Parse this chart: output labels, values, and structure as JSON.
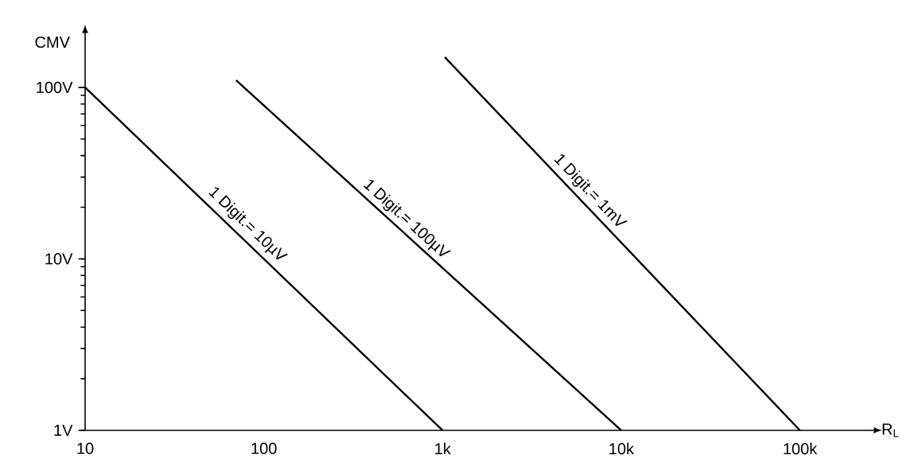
{
  "chart_data": {
    "type": "line",
    "xlabel": "R$_{L}$",
    "ylabel": "CMV",
    "log": "xy",
    "xlim": [
      10,
      250000
    ],
    "ylim": [
      1,
      200
    ],
    "xticks": [
      10,
      100,
      {
        "value": 1000,
        "label": "1k"
      },
      {
        "value": 10000,
        "label": "10k"
      },
      {
        "value": 100000,
        "label": "100k"
      }
    ],
    "yticks": [
      {
        "value": 1,
        "label": "1V"
      },
      {
        "value": 10,
        "label": "10V"
      },
      {
        "value": 100,
        "label": "100V"
      }
    ],
    "series": [
      {
        "color": "#000000",
        "x": [
          10,
          1000
        ],
        "values": [
          100,
          1
        ]
      },
      {
        "color": "#000000",
        "x": [
          70,
          10000
        ],
        "values": [
          110,
          1
        ]
      },
      {
        "color": "#000000",
        "x": [
          1030,
          100000
        ],
        "values": [
          150,
          1
        ]
      }
    ],
    "annotations": [
      {
        "text": "1 Digit.= 10µV",
        "x": 72,
        "y": 14
      },
      {
        "text": "1 Digit.= 100µV",
        "x": 560,
        "y": 15
      },
      {
        "text": "1 Digit.= 1mV",
        "x": 5900,
        "y": 22
      }
    ]
  }
}
